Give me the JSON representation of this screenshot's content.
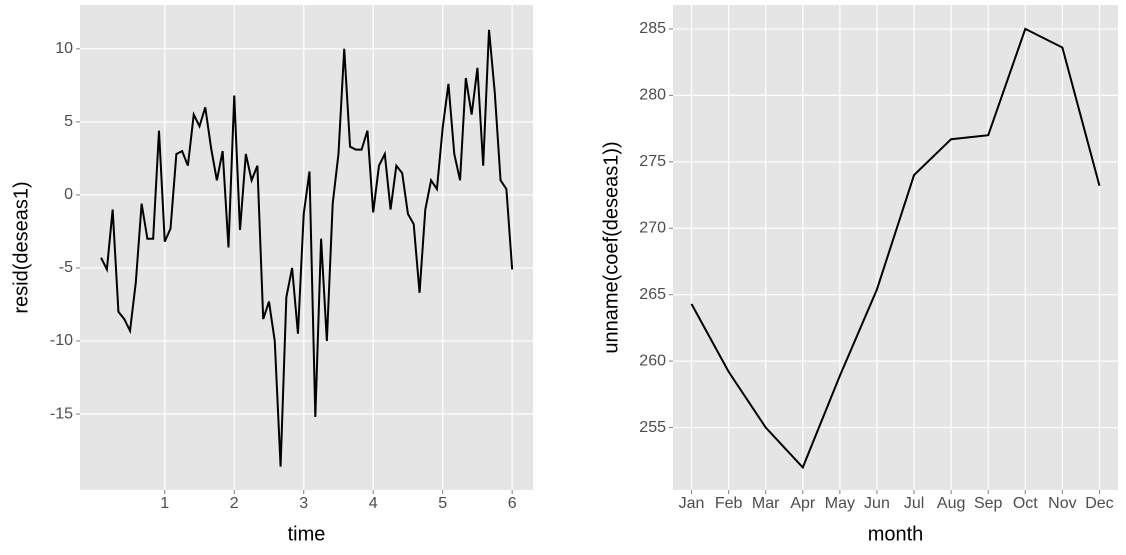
{
  "chart_data": [
    {
      "type": "line",
      "xlabel": "time",
      "ylabel": "resid(deseas1)",
      "color": "#000000",
      "grid": true,
      "x": [
        0.083,
        0.167,
        0.25,
        0.333,
        0.417,
        0.5,
        0.583,
        0.667,
        0.75,
        0.833,
        0.917,
        1,
        1.083,
        1.167,
        1.25,
        1.333,
        1.417,
        1.5,
        1.583,
        1.667,
        1.75,
        1.833,
        1.917,
        2,
        2.083,
        2.167,
        2.25,
        2.333,
        2.417,
        2.5,
        2.583,
        2.667,
        2.75,
        2.833,
        2.917,
        3,
        3.083,
        3.167,
        3.25,
        3.333,
        3.417,
        3.5,
        3.583,
        3.667,
        3.75,
        3.833,
        3.917,
        4,
        4.083,
        4.167,
        4.25,
        4.333,
        4.417,
        4.5,
        4.583,
        4.667,
        4.75,
        4.833,
        4.917,
        5,
        5.083,
        5.167,
        5.25,
        5.333,
        5.417,
        5.5,
        5.583,
        5.667,
        5.75,
        5.833,
        5.917,
        6
      ],
      "values": [
        -4.3,
        -5.1,
        -1,
        -8,
        -8.5,
        -9.3,
        -6,
        -0.6,
        -3,
        -3,
        4.4,
        -3.2,
        -2.3,
        2.8,
        3,
        2,
        5.5,
        4.7,
        6,
        3.2,
        1,
        3,
        -3.6,
        6.8,
        -2.4,
        2.8,
        1,
        2,
        -8.5,
        -7.3,
        -10,
        -18.6,
        -7,
        -5,
        -9.5,
        -1.3,
        1.6,
        -15.2,
        -3,
        -10,
        -0.6,
        2.8,
        10,
        3.3,
        3.1,
        3.1,
        4.4,
        -1.2,
        2,
        2.8,
        -1,
        2,
        1.5,
        -1.3,
        -2,
        -6.7,
        -1,
        1,
        0.4,
        4.6,
        7.6,
        2.8,
        1,
        8,
        5.5,
        8.7,
        2,
        11.3,
        7,
        1,
        0.4,
        -5.1
      ],
      "xlim": [
        -0.22,
        6.3
      ],
      "xticks": [
        1,
        2,
        3,
        4,
        5,
        6
      ],
      "ylim": [
        -20.2,
        13
      ],
      "yticks": [
        -15,
        -10,
        -5,
        0,
        5,
        10
      ]
    },
    {
      "type": "line",
      "xlabel": "month",
      "ylabel": "unname(coef(deseas1))",
      "color": "#000000",
      "grid": true,
      "categories": [
        "Jan",
        "Feb",
        "Mar",
        "Apr",
        "May",
        "Jun",
        "Jul",
        "Aug",
        "Sep",
        "Oct",
        "Nov",
        "Dec"
      ],
      "values": [
        264.3,
        259.2,
        255,
        252,
        258.9,
        265.4,
        274,
        276.7,
        277,
        285,
        283.6,
        273.2
      ],
      "ylim": [
        250.3,
        286.8
      ],
      "yticks": [
        255,
        260,
        265,
        270,
        275,
        280,
        285
      ]
    }
  ]
}
